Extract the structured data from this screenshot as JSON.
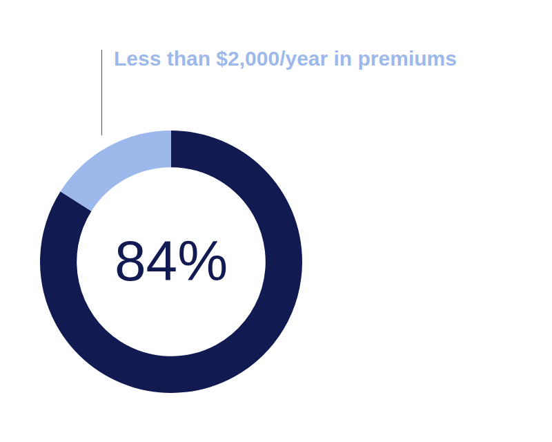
{
  "chart_data": {
    "type": "doughnut",
    "annotation": "Less than $2,000/year in premiums",
    "values": [
      84,
      16
    ],
    "value_labels": [
      "84%",
      null
    ],
    "colors": [
      "#121a52",
      "#9db8ea"
    ],
    "legend": false,
    "data_labels": true
  }
}
